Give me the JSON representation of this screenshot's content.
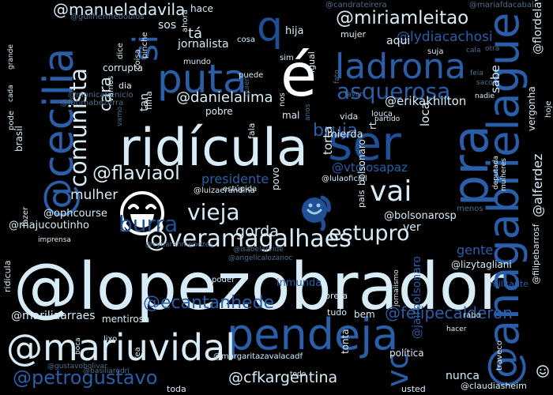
{
  "cloud": {
    "words": [
      "@lopezobrador",
      "ridícula",
      "puta",
      "é",
      "ladrona",
      "ser",
      "pendeja",
      "@anagabrielague",
      "@cecilia",
      "@mariuvidal",
      "@veramagalhaes",
      "asquerosa",
      "@miriamleitao",
      "@manueladavila",
      "comunista",
      "burra",
      "vieja",
      "estupro",
      "vai",
      "si",
      "q",
      "@flaviaol",
      "@ecantanhede",
      "@petrogustavo",
      "@cfkargentina",
      "pra",
      "vc",
      "bruja",
      "cara",
      "@danielalima",
      "@erikakhilton",
      "@lydiacachosi",
      "@ophcourse",
      "mulher",
      "presidente",
      "@vtolosapaz",
      "@bolsonarosp",
      "@alferdez",
      "gente",
      "gorda",
      "@mariliaarraes",
      "@majucoutinho",
      "@felipecalderon",
      "@margaritazavalacadf",
      "@lizytagliani",
      "@jairbolsonaro",
      "ridicula",
      "brasil",
      "inmunda",
      "política",
      "nunca",
      "mentirosa",
      "tá",
      "sos",
      "hija",
      "hace",
      "mujer",
      "aqui",
      "pobre",
      "loca",
      "torta",
      "sabe",
      "vergonha",
      "@flordelav",
      "@mariafdacabal",
      "@candrateirera",
      "@guilhermeboulos",
      "@lulaoficial",
      "@luizaerundina",
      "@fatimabezerra",
      "@monicabenicio",
      "@angelicalozanoc",
      "@cynarahmenezes",
      "@gustavobolivar",
      "@basiliarodri",
      "@claudiasheim",
      "@isabelarvide",
      "@filipebarrosf",
      "jornalista",
      "corrupta",
      "filha",
      "puede",
      "militante",
      "bolsonaro",
      "pais",
      "povo",
      "fala",
      "traveco",
      "preta",
      "lixo",
      "boca",
      "tudo",
      "bem",
      "toda",
      "usted",
      "igual",
      "dice",
      "coisa",
      "dia",
      "tan",
      "mal",
      "poder",
      "partido",
      "vida",
      "louca",
      "nadie",
      "fazer",
      "grande",
      "cada",
      "pode",
      "rabo",
      "ver",
      "menos",
      "estúpida",
      "imprensa",
      "mierda",
      "tonta",
      "hoje",
      "todo",
      "fea",
      "nos",
      "rt",
      "ahora",
      "vamos",
      "pinche",
      "mundo",
      "suja",
      "jornalismo",
      "hacer",
      "cosa",
      "favor",
      "otra",
      "quien",
      "deputada",
      "mulheres",
      "feia",
      "saco",
      "fato",
      "sim",
      "cala",
      "vamo",
      "anos"
    ]
  }
}
